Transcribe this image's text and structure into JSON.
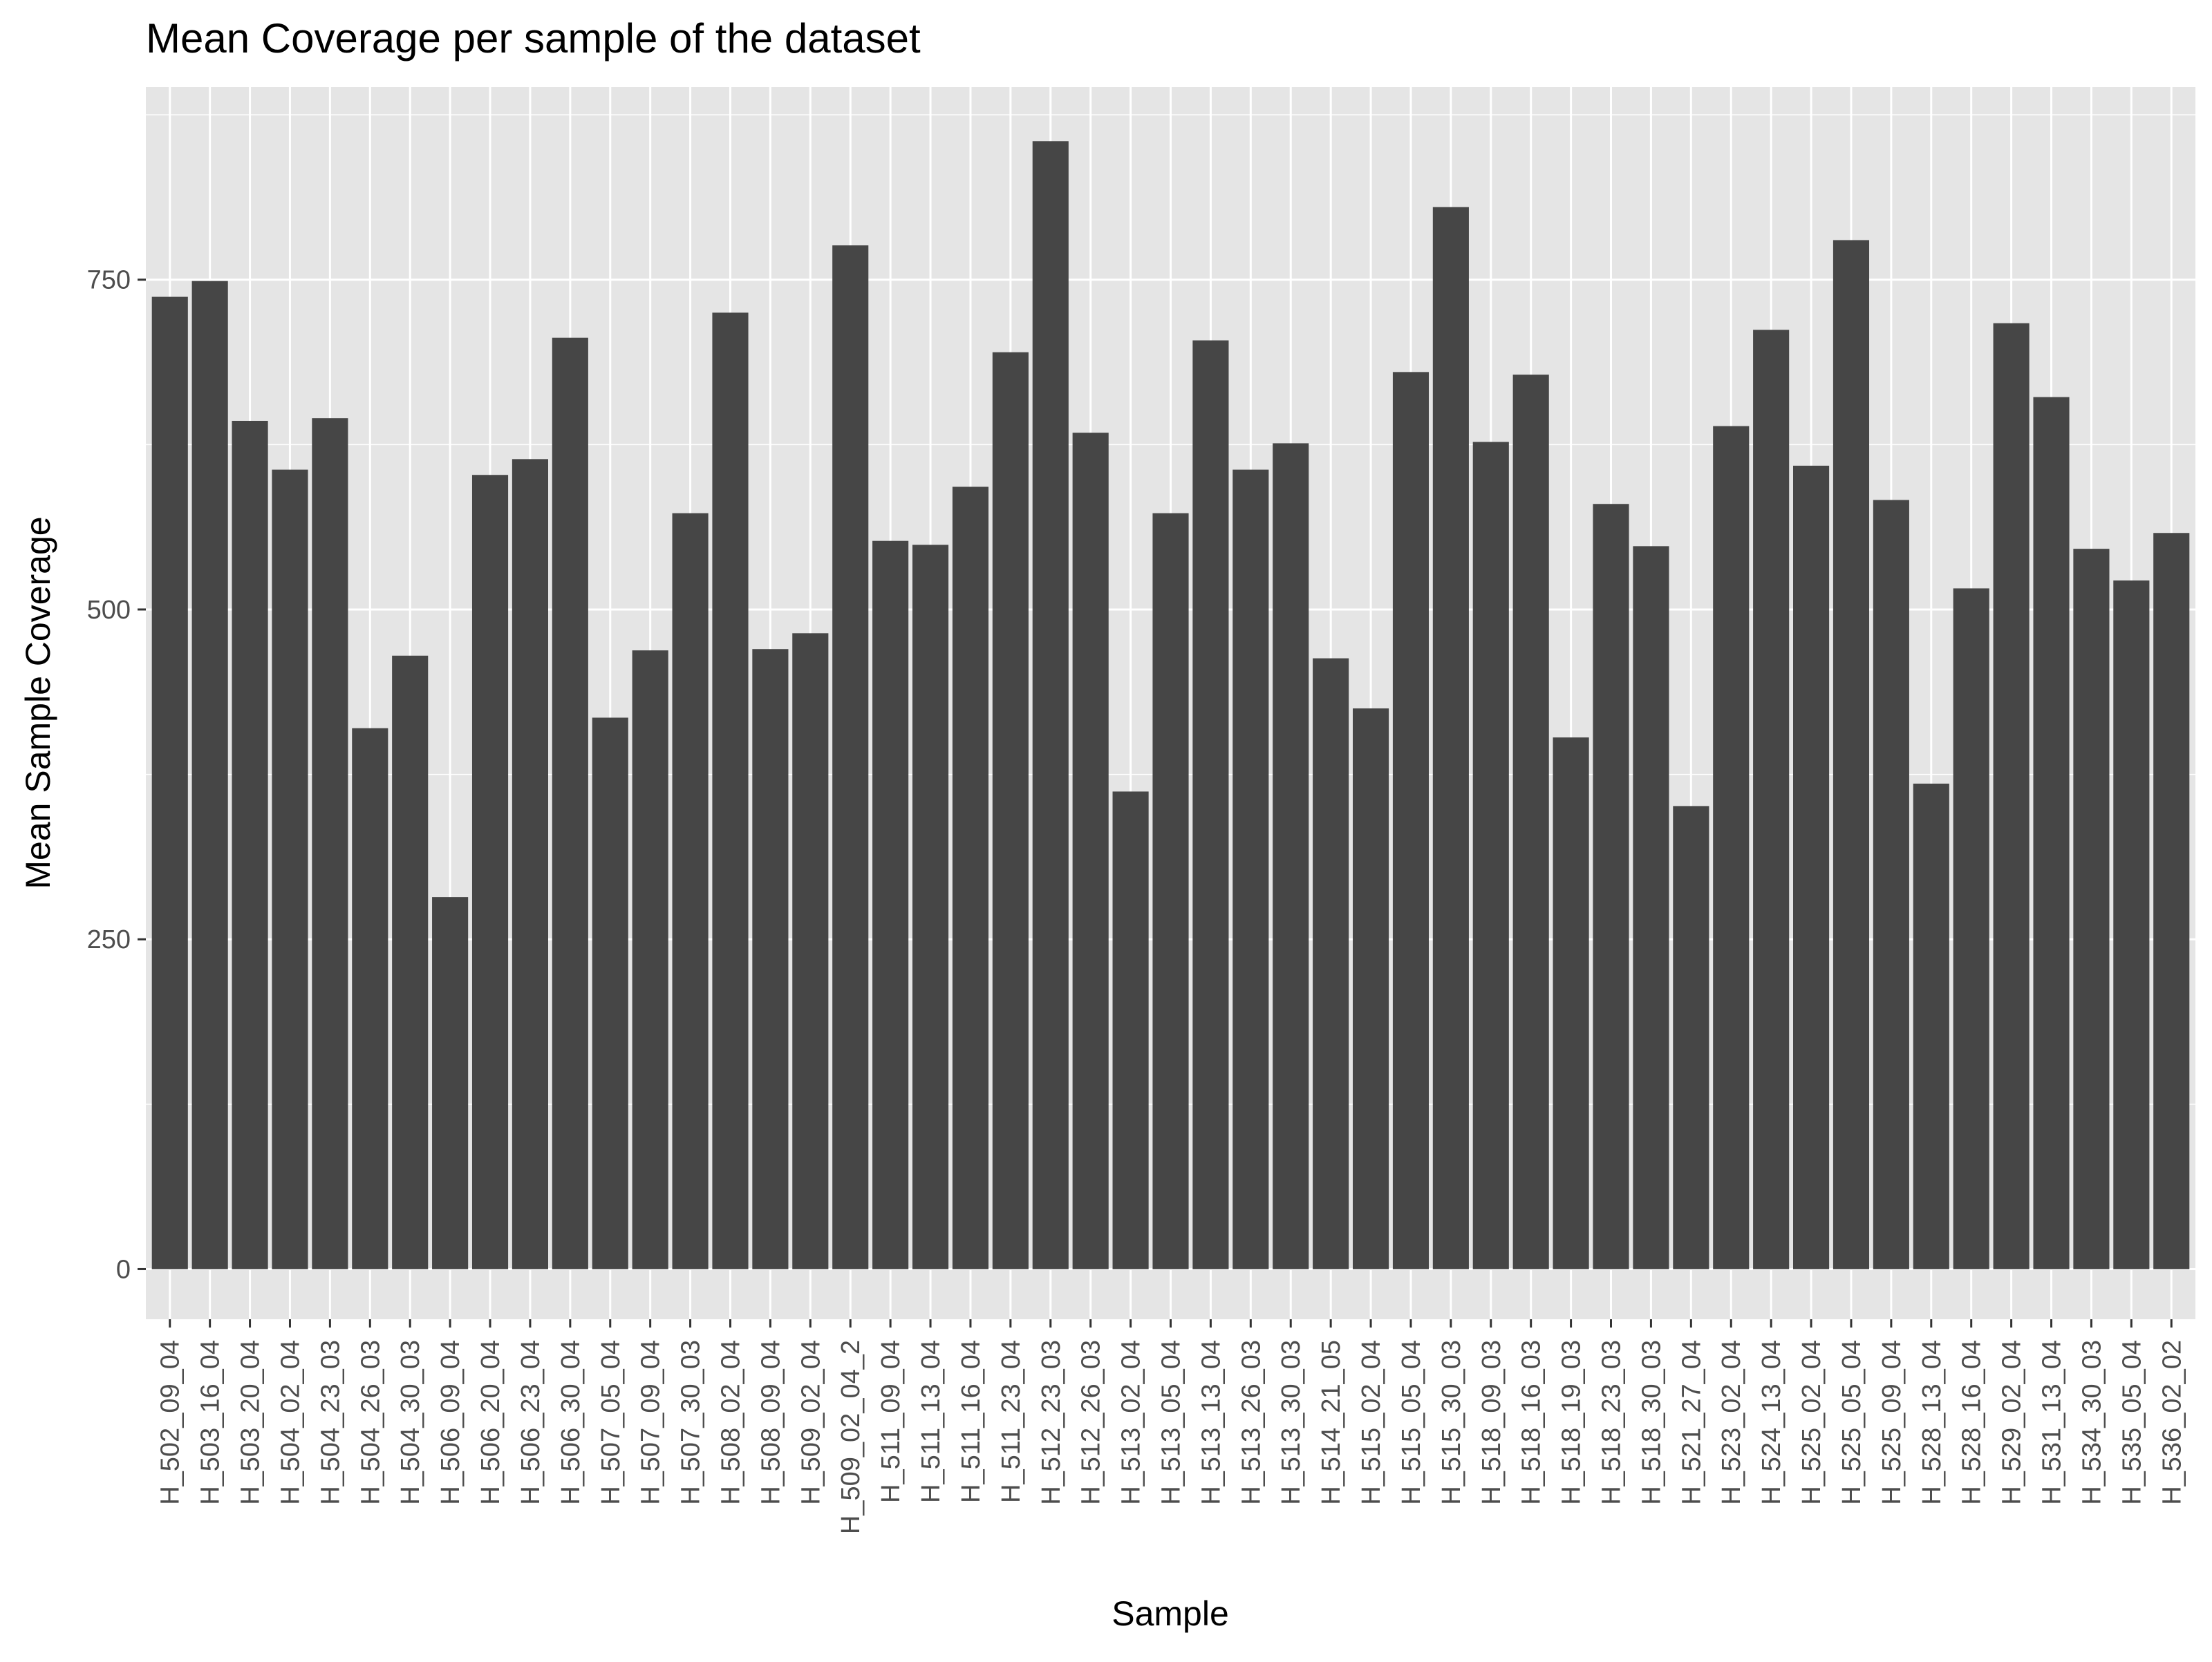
{
  "chart_data": {
    "type": "bar",
    "title": "Mean Coverage per sample of the dataset",
    "xlabel": "Sample",
    "ylabel": "Mean Sample Coverage",
    "ylim": [
      -38,
      896
    ],
    "yticks": [
      0,
      250,
      500,
      750
    ],
    "grid": true,
    "theme": "ggplot2 grey",
    "colors": {
      "bar": "#464646",
      "panel": "#e5e5e5",
      "grid": "#ffffff",
      "tick_text": "#4d4d4d"
    },
    "categories": [
      "H_502_09_04",
      "H_503_16_04",
      "H_503_20_04",
      "H_504_02_04",
      "H_504_23_03",
      "H_504_26_03",
      "H_504_30_03",
      "H_506_09_04",
      "H_506_20_04",
      "H_506_23_04",
      "H_506_30_04",
      "H_507_05_04",
      "H_507_09_04",
      "H_507_30_03",
      "H_508_02_04",
      "H_508_09_04",
      "H_509_02_04",
      "H_509_02_04_2",
      "H_511_09_04",
      "H_511_13_04",
      "H_511_16_04",
      "H_511_23_04",
      "H_512_23_03",
      "H_512_26_03",
      "H_513_02_04",
      "H_513_05_04",
      "H_513_13_04",
      "H_513_26_03",
      "H_513_30_03",
      "H_514_21_05",
      "H_515_02_04",
      "H_515_05_04",
      "H_515_30_03",
      "H_518_09_03",
      "H_518_16_03",
      "H_518_19_03",
      "H_518_23_03",
      "H_518_30_03",
      "H_521_27_04",
      "H_523_02_04",
      "H_524_13_04",
      "H_525_02_04",
      "H_525_05_04",
      "H_525_09_04",
      "H_528_13_04",
      "H_528_16_04",
      "H_529_02_04",
      "H_531_13_04",
      "H_534_30_03",
      "H_535_05_04",
      "H_536_02_02"
    ],
    "values": [
      737,
      749,
      643,
      606,
      645,
      410,
      465,
      282,
      602,
      614,
      706,
      418,
      469,
      573,
      725,
      470,
      482,
      776,
      552,
      549,
      593,
      695,
      855,
      634,
      362,
      573,
      704,
      606,
      626,
      463,
      425,
      680,
      805,
      627,
      678,
      403,
      580,
      548,
      351,
      639,
      712,
      609,
      780,
      583,
      368,
      516,
      717,
      661,
      546,
      522,
      558
    ]
  }
}
